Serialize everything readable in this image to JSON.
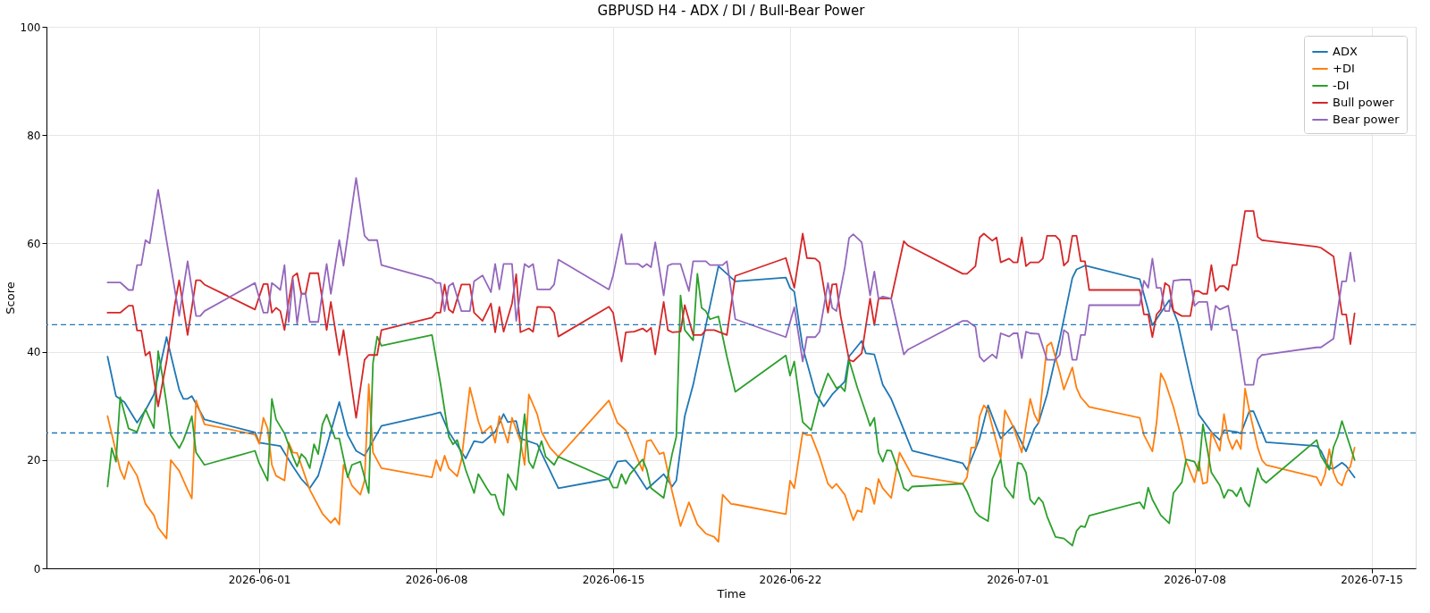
{
  "chart_data": {
    "type": "line",
    "title": "GBPUSD H4 - ADX / DI / Bull-Bear Power",
    "xlabel": "Time",
    "ylabel": "Score",
    "xlim": [
      "2026-05-23T14:00",
      "2026-07-16T18:00"
    ],
    "xticks": [
      "2026-06-01",
      "2026-06-08",
      "2026-06-15",
      "2026-06-22",
      "2026-07-01",
      "2026-07-08",
      "2026-07-15"
    ],
    "ylim": [
      0,
      100
    ],
    "yticks": [
      0,
      20,
      40,
      60,
      80,
      100
    ],
    "grid": true,
    "legend": "top right",
    "ref_lines": [
      {
        "axis": "y",
        "value": 45,
        "color": "#1f77b4",
        "line_style": "dashed"
      },
      {
        "axis": "y",
        "value": 25,
        "color": "#1f77b4",
        "line_style": "dashed"
      }
    ],
    "series": [
      {
        "name": "ADX",
        "color": "#1f77b4",
        "x": [
          "2026-05-26T00:00",
          "2026-05-26T08:00",
          "2026-05-26T16:00",
          "2026-05-27T04:00",
          "2026-05-27T12:00",
          "2026-05-27T20:00",
          "2026-05-28T08:00",
          "2026-05-28T20:00",
          "2026-05-29T00:00",
          "2026-05-29T04:00",
          "2026-05-29T08:00",
          "2026-05-29T20:00",
          "2026-05-31T20:00",
          "2026-06-01T00:00",
          "2026-06-01T20:00",
          "2026-06-02T08:00",
          "2026-06-02T16:00",
          "2026-06-03T00:00",
          "2026-06-03T08:00",
          "2026-06-04T04:00",
          "2026-06-04T12:00",
          "2026-06-04T20:00",
          "2026-06-05T04:00",
          "2026-06-05T12:00",
          "2026-06-05T20:00",
          "2026-06-07T20:00",
          "2026-06-08T04:00",
          "2026-06-08T12:00",
          "2026-06-09T04:00",
          "2026-06-09T12:00",
          "2026-06-09T20:00",
          "2026-06-10T08:00",
          "2026-06-10T16:00",
          "2026-06-10T20:00",
          "2026-06-11T04:00",
          "2026-06-11T08:00",
          "2026-06-12T00:00",
          "2026-06-12T20:00",
          "2026-06-14T20:00",
          "2026-06-15T04:00",
          "2026-06-15T12:00",
          "2026-06-15T20:00",
          "2026-06-16T08:00",
          "2026-06-17T00:00",
          "2026-06-17T08:00",
          "2026-06-17T12:00",
          "2026-06-17T20:00",
          "2026-06-18T04:00",
          "2026-06-19T04:00",
          "2026-06-19T20:00",
          "2026-06-21T20:00",
          "2026-06-22T00:00",
          "2026-06-22T04:00",
          "2026-06-22T12:00",
          "2026-06-23T00:00",
          "2026-06-23T08:00",
          "2026-06-23T16:00",
          "2026-06-24T04:00",
          "2026-06-24T08:00",
          "2026-06-24T20:00",
          "2026-06-25T00:00",
          "2026-06-25T08:00",
          "2026-06-25T16:00",
          "2026-06-26T00:00",
          "2026-06-26T08:00",
          "2026-06-26T20:00",
          "2026-06-28T20:00",
          "2026-06-29T00:00",
          "2026-06-29T08:00",
          "2026-06-29T12:00",
          "2026-06-29T20:00",
          "2026-06-30T08:00",
          "2026-06-30T20:00",
          "2026-07-01T08:00",
          "2026-07-01T16:00",
          "2026-07-01T20:00",
          "2026-07-02T04:00",
          "2026-07-02T16:00",
          "2026-07-03T04:00",
          "2026-07-03T08:00",
          "2026-07-03T16:00",
          "2026-07-05T20:00",
          "2026-07-06T08:00",
          "2026-07-07T00:00",
          "2026-07-07T08:00",
          "2026-07-07T20:00",
          "2026-07-08T04:00",
          "2026-07-08T16:00",
          "2026-07-09T00:00",
          "2026-07-09T04:00",
          "2026-07-09T16:00",
          "2026-07-09T20:00",
          "2026-07-10T04:00",
          "2026-07-10T08:00",
          "2026-07-10T20:00",
          "2026-07-12T20:00",
          "2026-07-13T00:00",
          "2026-07-13T08:00",
          "2026-07-13T12:00",
          "2026-07-13T20:00",
          "2026-07-14T00:00",
          "2026-07-14T08:00"
        ],
        "values": [
          39.1,
          31.8,
          30.7,
          26.9,
          29.2,
          32.1,
          42.7,
          33,
          31.3,
          31.3,
          31.8,
          27.5,
          25.1,
          23.2,
          22.6,
          18.8,
          16.5,
          14.8,
          17.1,
          30.7,
          24.6,
          21.7,
          20.8,
          23.5,
          26.3,
          28.4,
          28.8,
          25.2,
          20.3,
          23.5,
          23.2,
          25.2,
          28.5,
          27,
          27.2,
          24,
          22.9,
          14.8,
          16.5,
          19.7,
          19.9,
          18.2,
          14.6,
          17.4,
          15.1,
          16.2,
          28.1,
          33.9,
          55.8,
          53,
          53.7,
          51.8,
          51.1,
          40.8,
          32.4,
          29.9,
          32.1,
          34.5,
          39.1,
          42,
          39.7,
          39.5,
          33.9,
          31.3,
          27.5,
          21.7,
          19.4,
          18.2,
          22,
          24,
          30.1,
          24,
          26.3,
          21.6,
          25.8,
          26.9,
          32.1,
          42.3,
          53.6,
          55.2,
          55.9,
          53.4,
          44.9,
          49.5,
          45.5,
          35,
          28.4,
          25.2,
          23.7,
          25.5,
          25.2,
          24.9,
          29,
          29,
          23.3,
          22.6,
          21.7,
          18.5,
          18.4,
          19.5,
          18.9,
          16.8
        ]
      },
      {
        "name": "+DI",
        "color": "#ff7f0e",
        "x": [
          "2026-05-26T00:00",
          "2026-05-26T12:00",
          "2026-05-26T16:00",
          "2026-05-26T20:00",
          "2026-05-27T04:00",
          "2026-05-27T12:00",
          "2026-05-27T20:00",
          "2026-05-28T00:00",
          "2026-05-28T08:00",
          "2026-05-28T12:00",
          "2026-05-28T20:00",
          "2026-05-29T04:00",
          "2026-05-29T08:00",
          "2026-05-29T12:00",
          "2026-05-29T20:00",
          "2026-05-31T20:00",
          "2026-06-01T00:00",
          "2026-06-01T04:00",
          "2026-06-01T08:00",
          "2026-06-01T12:00",
          "2026-06-01T16:00",
          "2026-06-02T00:00",
          "2026-06-02T04:00",
          "2026-06-02T08:00",
          "2026-06-02T12:00",
          "2026-06-03T00:00",
          "2026-06-03T12:00",
          "2026-06-03T20:00",
          "2026-06-04T00:00",
          "2026-06-04T04:00",
          "2026-06-04T08:00",
          "2026-06-04T16:00",
          "2026-06-05T00:00",
          "2026-06-05T04:00",
          "2026-06-05T08:00",
          "2026-06-05T12:00",
          "2026-06-05T20:00",
          "2026-06-07T20:00",
          "2026-06-08T00:00",
          "2026-06-08T04:00",
          "2026-06-08T08:00",
          "2026-06-08T12:00",
          "2026-06-08T20:00",
          "2026-06-09T00:00",
          "2026-06-09T08:00",
          "2026-06-09T16:00",
          "2026-06-09T20:00",
          "2026-06-10T04:00",
          "2026-06-10T08:00",
          "2026-06-10T12:00",
          "2026-06-10T20:00",
          "2026-06-11T00:00",
          "2026-06-11T08:00",
          "2026-06-11T12:00",
          "2026-06-11T16:00",
          "2026-06-12T00:00",
          "2026-06-12T04:00",
          "2026-06-12T12:00",
          "2026-06-12T20:00",
          "2026-06-14T20:00",
          "2026-06-15T04:00",
          "2026-06-15T12:00",
          "2026-06-15T20:00",
          "2026-06-16T04:00",
          "2026-06-16T08:00",
          "2026-06-16T12:00",
          "2026-06-16T20:00",
          "2026-06-17T00:00",
          "2026-06-17T08:00",
          "2026-06-17T16:00",
          "2026-06-18T00:00",
          "2026-06-18T08:00",
          "2026-06-18T16:00",
          "2026-06-19T00:00",
          "2026-06-19T04:00",
          "2026-06-19T08:00",
          "2026-06-19T16:00",
          "2026-06-19T20:00",
          "2026-06-21T20:00",
          "2026-06-22T00:00",
          "2026-06-22T04:00",
          "2026-06-22T12:00",
          "2026-06-22T16:00",
          "2026-06-22T20:00",
          "2026-06-23T04:00",
          "2026-06-23T12:00",
          "2026-06-23T16:00",
          "2026-06-23T20:00",
          "2026-06-24T04:00",
          "2026-06-24T12:00",
          "2026-06-24T16:00",
          "2026-06-24T20:00",
          "2026-06-25T00:00",
          "2026-06-25T04:00",
          "2026-06-25T08:00",
          "2026-06-25T12:00",
          "2026-06-25T16:00",
          "2026-06-26T00:00",
          "2026-06-26T08:00",
          "2026-06-26T20:00",
          "2026-06-28T20:00",
          "2026-06-29T00:00",
          "2026-06-29T04:00",
          "2026-06-29T08:00",
          "2026-06-29T12:00",
          "2026-06-29T16:00",
          "2026-06-29T20:00",
          "2026-06-30T08:00",
          "2026-06-30T12:00",
          "2026-06-30T20:00",
          "2026-07-01T04:00",
          "2026-07-01T12:00",
          "2026-07-01T16:00",
          "2026-07-01T20:00",
          "2026-07-02T04:00",
          "2026-07-02T08:00",
          "2026-07-02T16:00",
          "2026-07-02T20:00",
          "2026-07-03T04:00",
          "2026-07-03T08:00",
          "2026-07-03T12:00",
          "2026-07-03T20:00",
          "2026-07-05T20:00",
          "2026-07-06T00:00",
          "2026-07-06T08:00",
          "2026-07-06T12:00",
          "2026-07-06T16:00",
          "2026-07-06T20:00",
          "2026-07-07T04:00",
          "2026-07-07T12:00",
          "2026-07-07T16:00",
          "2026-07-08T00:00",
          "2026-07-08T04:00",
          "2026-07-08T08:00",
          "2026-07-08T12:00",
          "2026-07-08T16:00",
          "2026-07-09T00:00",
          "2026-07-09T04:00",
          "2026-07-09T08:00",
          "2026-07-09T12:00",
          "2026-07-09T16:00",
          "2026-07-09T20:00",
          "2026-07-10T00:00",
          "2026-07-10T04:00",
          "2026-07-10T12:00",
          "2026-07-10T16:00",
          "2026-07-10T20:00",
          "2026-07-12T20:00",
          "2026-07-13T00:00",
          "2026-07-13T04:00",
          "2026-07-13T08:00",
          "2026-07-13T12:00",
          "2026-07-13T16:00",
          "2026-07-13T20:00",
          "2026-07-14T00:00",
          "2026-07-14T04:00",
          "2026-07-14T08:00"
        ],
        "values": [
          28.1,
          18.2,
          16.5,
          19.7,
          17.1,
          11.9,
          9.8,
          7.5,
          5.5,
          20,
          18,
          14.5,
          12.9,
          31,
          26.6,
          24.7,
          23,
          27.8,
          25.8,
          19.1,
          17.1,
          16.2,
          23.2,
          21.4,
          21.3,
          14.5,
          10.1,
          8.4,
          9.3,
          8.1,
          19.1,
          15.3,
          13.6,
          16.2,
          34,
          21.4,
          18.5,
          16.8,
          20,
          18,
          20.8,
          18.5,
          17,
          20,
          33.4,
          27.2,
          24.9,
          26.3,
          23.2,
          28.1,
          23.2,
          27.8,
          23.5,
          19.1,
          32.1,
          28.4,
          25.2,
          22.3,
          20.6,
          31,
          26.9,
          25.5,
          21.7,
          18,
          23.5,
          23.7,
          21.1,
          21.4,
          14.2,
          7.8,
          12.2,
          8.1,
          6.4,
          5.8,
          4.9,
          13.6,
          11.9,
          11.8,
          10,
          16.2,
          14.8,
          25.1,
          24.6,
          24.6,
          20.6,
          15.6,
          14.8,
          15.6,
          13.6,
          8.9,
          10.7,
          10.4,
          14.9,
          14.5,
          11.9,
          16.5,
          14.8,
          13,
          21.4,
          17.1,
          15.6,
          16.8,
          22.3,
          22.3,
          28.1,
          30.1,
          29.2,
          20.3,
          29.2,
          26.1,
          21.4,
          31.3,
          28.4,
          26.9,
          41.1,
          41.7,
          36.2,
          33,
          37.1,
          33.3,
          31.6,
          29.8,
          27.8,
          24.6,
          21.6,
          26.9,
          36,
          34.5,
          29.8,
          23.7,
          19.7,
          15.9,
          19.7,
          15.6,
          15.9,
          25.2,
          21.7,
          28.5,
          24,
          22,
          23.7,
          22,
          33.2,
          29.2,
          22.3,
          20,
          19.1,
          16.8,
          15.3,
          17.4,
          22,
          17.7,
          15.9,
          15.3,
          17.7,
          18.8,
          22.3
        ]
      },
      {
        "name": "-DI",
        "color": "#2ca02c",
        "x": [
          "2026-05-26T00:00",
          "2026-05-26T04:00",
          "2026-05-26T08:00",
          "2026-05-26T12:00",
          "2026-05-26T20:00",
          "2026-05-27T04:00",
          "2026-05-27T12:00",
          "2026-05-27T20:00",
          "2026-05-28T00:00",
          "2026-05-28T04:00",
          "2026-05-28T08:00",
          "2026-05-28T12:00",
          "2026-05-28T20:00",
          "2026-05-29T00:00",
          "2026-05-29T04:00",
          "2026-05-29T08:00",
          "2026-05-29T12:00",
          "2026-05-29T20:00",
          "2026-05-31T20:00",
          "2026-06-01T00:00",
          "2026-06-01T08:00",
          "2026-06-01T12:00",
          "2026-06-01T16:00",
          "2026-06-02T00:00",
          "2026-06-02T08:00",
          "2026-06-02T12:00",
          "2026-06-02T16:00",
          "2026-06-02T20:00",
          "2026-06-03T00:00",
          "2026-06-03T04:00",
          "2026-06-03T08:00",
          "2026-06-03T12:00",
          "2026-06-03T16:00",
          "2026-06-04T00:00",
          "2026-06-04T04:00",
          "2026-06-04T12:00",
          "2026-06-04T16:00",
          "2026-06-05T00:00",
          "2026-06-05T08:00",
          "2026-06-05T12:00",
          "2026-06-05T16:00",
          "2026-06-05T20:00",
          "2026-06-07T20:00",
          "2026-06-08T04:00",
          "2026-06-08T12:00",
          "2026-06-08T16:00",
          "2026-06-08T20:00",
          "2026-06-09T04:00",
          "2026-06-09T12:00",
          "2026-06-09T16:00",
          "2026-06-10T00:00",
          "2026-06-10T04:00",
          "2026-06-10T08:00",
          "2026-06-10T12:00",
          "2026-06-10T16:00",
          "2026-06-10T20:00",
          "2026-06-11T04:00",
          "2026-06-11T12:00",
          "2026-06-11T16:00",
          "2026-06-11T20:00",
          "2026-06-12T00:00",
          "2026-06-12T04:00",
          "2026-06-12T08:00",
          "2026-06-12T16:00",
          "2026-06-12T20:00",
          "2026-06-14T20:00",
          "2026-06-15T00:00",
          "2026-06-15T04:00",
          "2026-06-15T08:00",
          "2026-06-15T12:00",
          "2026-06-15T16:00",
          "2026-06-16T04:00",
          "2026-06-16T08:00",
          "2026-06-16T12:00",
          "2026-06-17T00:00",
          "2026-06-17T08:00",
          "2026-06-17T12:00",
          "2026-06-17T16:00",
          "2026-06-17T20:00",
          "2026-06-18T04:00",
          "2026-06-18T08:00",
          "2026-06-18T12:00",
          "2026-06-18T16:00",
          "2026-06-18T20:00",
          "2026-06-19T04:00",
          "2026-06-19T12:00",
          "2026-06-19T20:00",
          "2026-06-21T20:00",
          "2026-06-22T00:00",
          "2026-06-22T04:00",
          "2026-06-22T12:00",
          "2026-06-22T20:00",
          "2026-06-23T04:00",
          "2026-06-23T12:00",
          "2026-06-23T20:00",
          "2026-06-24T00:00",
          "2026-06-24T04:00",
          "2026-06-24T08:00",
          "2026-06-24T16:00",
          "2026-06-25T00:00",
          "2026-06-25T04:00",
          "2026-06-25T08:00",
          "2026-06-25T12:00",
          "2026-06-25T16:00",
          "2026-06-25T20:00",
          "2026-06-26T00:00",
          "2026-06-26T08:00",
          "2026-06-26T12:00",
          "2026-06-26T16:00",
          "2026-06-26T20:00",
          "2026-06-28T20:00",
          "2026-06-29T00:00",
          "2026-06-29T08:00",
          "2026-06-29T12:00",
          "2026-06-29T20:00",
          "2026-06-30T00:00",
          "2026-06-30T08:00",
          "2026-06-30T12:00",
          "2026-06-30T20:00",
          "2026-07-01T00:00",
          "2026-07-01T04:00",
          "2026-07-01T08:00",
          "2026-07-01T12:00",
          "2026-07-01T16:00",
          "2026-07-01T20:00",
          "2026-07-02T00:00",
          "2026-07-02T04:00",
          "2026-07-02T12:00",
          "2026-07-02T20:00",
          "2026-07-03T04:00",
          "2026-07-03T08:00",
          "2026-07-03T12:00",
          "2026-07-03T16:00",
          "2026-07-03T20:00",
          "2026-07-05T20:00",
          "2026-07-06T00:00",
          "2026-07-06T04:00",
          "2026-07-06T08:00",
          "2026-07-06T16:00",
          "2026-07-07T00:00",
          "2026-07-07T04:00",
          "2026-07-07T12:00",
          "2026-07-07T16:00",
          "2026-07-07T20:00",
          "2026-07-08T00:00",
          "2026-07-08T04:00",
          "2026-07-08T08:00",
          "2026-07-08T16:00",
          "2026-07-09T00:00",
          "2026-07-09T04:00",
          "2026-07-09T08:00",
          "2026-07-09T12:00",
          "2026-07-09T16:00",
          "2026-07-09T20:00",
          "2026-07-10T00:00",
          "2026-07-10T04:00",
          "2026-07-10T12:00",
          "2026-07-10T16:00",
          "2026-07-10T20:00",
          "2026-07-12T20:00",
          "2026-07-13T00:00",
          "2026-07-13T08:00",
          "2026-07-13T12:00",
          "2026-07-13T16:00",
          "2026-07-13T20:00",
          "2026-07-14T08:00"
        ],
        "values": [
          15.1,
          22.2,
          19.7,
          31.6,
          25.8,
          25.2,
          29.4,
          25.9,
          40.1,
          35.6,
          30.4,
          24.6,
          22.2,
          23.7,
          25.8,
          28.1,
          21.4,
          19.1,
          21.7,
          19.4,
          16.2,
          31.3,
          27.5,
          24.9,
          20.6,
          18.8,
          21.1,
          20.3,
          18.5,
          22.9,
          21.1,
          26.6,
          28.4,
          24,
          24,
          16.8,
          19.1,
          19.7,
          13.9,
          37.9,
          42.8,
          41.1,
          43.1,
          34.2,
          24.3,
          22.9,
          23.7,
          18.2,
          13.9,
          17.4,
          14.8,
          13.6,
          13.6,
          11,
          9.8,
          17.4,
          14.5,
          28.5,
          19.7,
          18.5,
          21.1,
          23.5,
          20.6,
          19.1,
          20.6,
          16.5,
          14.9,
          14.9,
          17.4,
          15.6,
          17.4,
          20.1,
          18.2,
          14.8,
          13,
          21.1,
          24.3,
          50.4,
          44,
          42.1,
          54.4,
          48.1,
          47.5,
          46,
          46.5,
          39.1,
          32.6,
          39.3,
          35.6,
          38.2,
          27,
          25.5,
          31.6,
          36,
          33.3,
          33.6,
          32.7,
          38.5,
          33.3,
          28.7,
          26.3,
          27.8,
          21.4,
          19.7,
          21.8,
          21.7,
          17.4,
          14.8,
          14.3,
          15.1,
          15.6,
          14.2,
          10.4,
          9.6,
          8.7,
          16.5,
          20.1,
          15.1,
          13,
          19.5,
          19.3,
          17.7,
          12.7,
          11.8,
          13.1,
          12.2,
          9.6,
          5.8,
          5.5,
          4.2,
          6.9,
          7.8,
          7.6,
          9.7,
          12.2,
          11,
          14.9,
          12.7,
          9.8,
          8.3,
          13.9,
          15.9,
          20.1,
          19.9,
          19.7,
          18,
          26.6,
          17.7,
          15.3,
          13,
          14.5,
          14.3,
          13.3,
          14.9,
          12.4,
          11.4,
          18.5,
          16.5,
          15.8,
          23.7,
          20.8,
          18.2,
          22.4,
          24.3,
          27.2,
          20
        ]
      },
      {
        "name": "Bull power",
        "color": "#d62728",
        "x": [
          "2026-05-26T00:00",
          "2026-05-26T12:00",
          "2026-05-26T20:00",
          "2026-05-27T00:00",
          "2026-05-27T04:00",
          "2026-05-27T08:00",
          "2026-05-27T12:00",
          "2026-05-27T16:00",
          "2026-05-28T00:00",
          "2026-05-28T08:00",
          "2026-05-28T16:00",
          "2026-05-28T20:00",
          "2026-05-29T04:00",
          "2026-05-29T12:00",
          "2026-05-29T16:00",
          "2026-05-29T20:00",
          "2026-05-31T20:00",
          "2026-06-01T04:00",
          "2026-06-01T08:00",
          "2026-06-01T12:00",
          "2026-06-01T16:00",
          "2026-06-01T20:00",
          "2026-06-02T00:00",
          "2026-06-02T04:00",
          "2026-06-02T08:00",
          "2026-06-02T12:00",
          "2026-06-02T16:00",
          "2026-06-02T20:00",
          "2026-06-03T00:00",
          "2026-06-03T08:00",
          "2026-06-03T12:00",
          "2026-06-03T16:00",
          "2026-06-03T20:00",
          "2026-06-04T04:00",
          "2026-06-04T08:00",
          "2026-06-04T20:00",
          "2026-06-05T04:00",
          "2026-06-05T08:00",
          "2026-06-05T16:00",
          "2026-06-05T20:00",
          "2026-06-07T20:00",
          "2026-06-08T00:00",
          "2026-06-08T04:00",
          "2026-06-08T08:00",
          "2026-06-08T12:00",
          "2026-06-08T16:00",
          "2026-06-09T00:00",
          "2026-06-09T08:00",
          "2026-06-09T12:00",
          "2026-06-09T20:00",
          "2026-06-10T04:00",
          "2026-06-10T08:00",
          "2026-06-10T12:00",
          "2026-06-10T16:00",
          "2026-06-11T00:00",
          "2026-06-11T04:00",
          "2026-06-11T08:00",
          "2026-06-11T16:00",
          "2026-06-11T20:00",
          "2026-06-12T00:00",
          "2026-06-12T12:00",
          "2026-06-12T16:00",
          "2026-06-12T20:00",
          "2026-06-14T20:00",
          "2026-06-15T00:00",
          "2026-06-15T08:00",
          "2026-06-15T12:00",
          "2026-06-15T20:00",
          "2026-06-16T04:00",
          "2026-06-16T08:00",
          "2026-06-16T12:00",
          "2026-06-16T16:00",
          "2026-06-17T00:00",
          "2026-06-17T04:00",
          "2026-06-17T08:00",
          "2026-06-17T16:00",
          "2026-06-17T20:00",
          "2026-06-18T04:00",
          "2026-06-18T12:00",
          "2026-06-18T16:00",
          "2026-06-19T00:00",
          "2026-06-19T12:00",
          "2026-06-19T20:00",
          "2026-06-21T20:00",
          "2026-06-22T04:00",
          "2026-06-22T12:00",
          "2026-06-22T16:00",
          "2026-06-23T00:00",
          "2026-06-23T04:00",
          "2026-06-23T12:00",
          "2026-06-23T16:00",
          "2026-06-23T20:00",
          "2026-06-24T00:00",
          "2026-06-24T08:00",
          "2026-06-24T12:00",
          "2026-06-24T20:00",
          "2026-06-25T04:00",
          "2026-06-25T08:00",
          "2026-06-25T12:00",
          "2026-06-25T16:00",
          "2026-06-26T00:00",
          "2026-06-26T12:00",
          "2026-06-26T16:00",
          "2026-06-28T20:00",
          "2026-06-29T00:00",
          "2026-06-29T08:00",
          "2026-06-29T12:00",
          "2026-06-29T16:00",
          "2026-06-30T00:00",
          "2026-06-30T04:00",
          "2026-06-30T08:00",
          "2026-06-30T16:00",
          "2026-06-30T20:00",
          "2026-07-01T00:00",
          "2026-07-01T04:00",
          "2026-07-01T08:00",
          "2026-07-01T12:00",
          "2026-07-01T20:00",
          "2026-07-02T00:00",
          "2026-07-02T04:00",
          "2026-07-02T12:00",
          "2026-07-02T16:00",
          "2026-07-02T20:00",
          "2026-07-03T00:00",
          "2026-07-03T04:00",
          "2026-07-03T08:00",
          "2026-07-03T12:00",
          "2026-07-03T16:00",
          "2026-07-03T20:00",
          "2026-07-05T20:00",
          "2026-07-06T00:00",
          "2026-07-06T04:00",
          "2026-07-06T08:00",
          "2026-07-06T12:00",
          "2026-07-06T16:00",
          "2026-07-06T20:00",
          "2026-07-07T00:00",
          "2026-07-07T04:00",
          "2026-07-07T12:00",
          "2026-07-07T20:00",
          "2026-07-08T00:00",
          "2026-07-08T04:00",
          "2026-07-08T08:00",
          "2026-07-08T12:00",
          "2026-07-08T16:00",
          "2026-07-08T20:00",
          "2026-07-09T00:00",
          "2026-07-09T04:00",
          "2026-07-09T08:00",
          "2026-07-09T12:00",
          "2026-07-09T16:00",
          "2026-07-10T00:00",
          "2026-07-10T08:00",
          "2026-07-10T12:00",
          "2026-07-10T16:00",
          "2026-07-10T20:00",
          "2026-07-12T20:00",
          "2026-07-13T00:00",
          "2026-07-13T12:00",
          "2026-07-13T20:00",
          "2026-07-14T00:00",
          "2026-07-14T04:00",
          "2026-07-14T08:00"
        ],
        "values": [
          47.2,
          47.2,
          48.5,
          48.5,
          43.9,
          43.9,
          39.3,
          40,
          29.9,
          38.2,
          48.9,
          53.2,
          43.1,
          53.2,
          53.2,
          52.4,
          47.8,
          52.5,
          52.5,
          47.2,
          48.1,
          47.5,
          44,
          49.4,
          53.9,
          54.5,
          50.7,
          50.7,
          54.5,
          54.5,
          49.5,
          44,
          49.2,
          39.4,
          44,
          27.8,
          38.5,
          39.4,
          39.4,
          44,
          46.3,
          47.2,
          47.2,
          52.4,
          47.8,
          47.2,
          52.4,
          52.4,
          47.2,
          45.7,
          48.9,
          43.6,
          48.3,
          43.7,
          48.9,
          54.3,
          43.6,
          44.3,
          43.7,
          48.3,
          48.2,
          47.2,
          42.8,
          48.3,
          47.2,
          38.2,
          43.6,
          43.7,
          44.3,
          43.7,
          44.4,
          39.5,
          49.2,
          44,
          43.6,
          43.7,
          48.6,
          43.1,
          43.1,
          44,
          44,
          43.1,
          54,
          57.3,
          51.8,
          61.8,
          57.3,
          57.2,
          56.5,
          47.2,
          52.4,
          52.5,
          46.6,
          38.5,
          38.2,
          39.7,
          49.8,
          44.9,
          49.8,
          49.8,
          49.8,
          60.4,
          59.6,
          54.4,
          54.4,
          55.8,
          61.1,
          61.8,
          60.5,
          61.1,
          56.5,
          57.2,
          56.5,
          56.5,
          61.1,
          55.8,
          56.5,
          56.5,
          57.2,
          61.4,
          61.4,
          60.6,
          55.9,
          56.7,
          61.4,
          61.4,
          56.7,
          56.7,
          51.4,
          51.4,
          46.9,
          46.9,
          42.7,
          46.9,
          47.8,
          52.7,
          52.1,
          47.5,
          46.6,
          46.6,
          51.2,
          51.2,
          50.7,
          50.7,
          56,
          51.2,
          52.1,
          52.1,
          51.4,
          56,
          56,
          66,
          66,
          61.2,
          60.6,
          60.5,
          59.4,
          59.2,
          57.6,
          46.9,
          46.9,
          41.4,
          47.1
        ]
      },
      {
        "name": "Bear power",
        "color": "#9467bd",
        "x": [
          "2026-05-26T00:00",
          "2026-05-26T12:00",
          "2026-05-26T20:00",
          "2026-05-27T00:00",
          "2026-05-27T04:00",
          "2026-05-27T08:00",
          "2026-05-27T12:00",
          "2026-05-27T16:00",
          "2026-05-28T00:00",
          "2026-05-28T20:00",
          "2026-05-29T04:00",
          "2026-05-29T12:00",
          "2026-05-29T16:00",
          "2026-05-29T20:00",
          "2026-05-31T20:00",
          "2026-06-01T04:00",
          "2026-06-01T08:00",
          "2026-06-01T12:00",
          "2026-06-01T16:00",
          "2026-06-01T20:00",
          "2026-06-02T00:00",
          "2026-06-02T04:00",
          "2026-06-02T08:00",
          "2026-06-02T12:00",
          "2026-06-02T16:00",
          "2026-06-02T20:00",
          "2026-06-03T00:00",
          "2026-06-03T08:00",
          "2026-06-03T12:00",
          "2026-06-03T16:00",
          "2026-06-03T20:00",
          "2026-06-04T04:00",
          "2026-06-04T08:00",
          "2026-06-04T20:00",
          "2026-06-05T04:00",
          "2026-06-05T08:00",
          "2026-06-05T16:00",
          "2026-06-05T20:00",
          "2026-06-07T20:00",
          "2026-06-08T00:00",
          "2026-06-08T04:00",
          "2026-06-08T08:00",
          "2026-06-08T12:00",
          "2026-06-08T16:00",
          "2026-06-09T00:00",
          "2026-06-09T08:00",
          "2026-06-09T12:00",
          "2026-06-09T20:00",
          "2026-06-10T04:00",
          "2026-06-10T08:00",
          "2026-06-10T12:00",
          "2026-06-10T16:00",
          "2026-06-11T00:00",
          "2026-06-11T04:00",
          "2026-06-11T12:00",
          "2026-06-11T16:00",
          "2026-06-11T20:00",
          "2026-06-12T00:00",
          "2026-06-12T12:00",
          "2026-06-12T16:00",
          "2026-06-12T20:00",
          "2026-06-14T20:00",
          "2026-06-15T00:00",
          "2026-06-15T08:00",
          "2026-06-15T12:00",
          "2026-06-16T00:00",
          "2026-06-16T04:00",
          "2026-06-16T08:00",
          "2026-06-16T12:00",
          "2026-06-16T16:00",
          "2026-06-17T00:00",
          "2026-06-17T04:00",
          "2026-06-17T08:00",
          "2026-06-17T16:00",
          "2026-06-18T00:00",
          "2026-06-18T04:00",
          "2026-06-18T16:00",
          "2026-06-18T20:00",
          "2026-06-19T08:00",
          "2026-06-19T12:00",
          "2026-06-19T20:00",
          "2026-06-21T20:00",
          "2026-06-22T04:00",
          "2026-06-22T12:00",
          "2026-06-22T16:00",
          "2026-06-23T00:00",
          "2026-06-23T04:00",
          "2026-06-23T12:00",
          "2026-06-23T16:00",
          "2026-06-23T20:00",
          "2026-06-24T04:00",
          "2026-06-24T08:00",
          "2026-06-24T12:00",
          "2026-06-24T20:00",
          "2026-06-25T04:00",
          "2026-06-25T08:00",
          "2026-06-25T12:00",
          "2026-06-25T16:00",
          "2026-06-26T00:00",
          "2026-06-26T12:00",
          "2026-06-26T16:00",
          "2026-06-28T20:00",
          "2026-06-29T00:00",
          "2026-06-29T08:00",
          "2026-06-29T12:00",
          "2026-06-29T16:00",
          "2026-06-30T00:00",
          "2026-06-30T04:00",
          "2026-06-30T08:00",
          "2026-06-30T16:00",
          "2026-06-30T20:00",
          "2026-07-01T00:00",
          "2026-07-01T04:00",
          "2026-07-01T08:00",
          "2026-07-01T12:00",
          "2026-07-01T20:00",
          "2026-07-02T04:00",
          "2026-07-02T12:00",
          "2026-07-02T16:00",
          "2026-07-02T20:00",
          "2026-07-03T00:00",
          "2026-07-03T04:00",
          "2026-07-03T08:00",
          "2026-07-03T12:00",
          "2026-07-03T16:00",
          "2026-07-03T20:00",
          "2026-07-05T20:00",
          "2026-07-06T00:00",
          "2026-07-06T04:00",
          "2026-07-06T08:00",
          "2026-07-06T12:00",
          "2026-07-06T16:00",
          "2026-07-06T20:00",
          "2026-07-07T00:00",
          "2026-07-07T04:00",
          "2026-07-07T12:00",
          "2026-07-07T20:00",
          "2026-07-08T00:00",
          "2026-07-08T04:00",
          "2026-07-08T12:00",
          "2026-07-08T16:00",
          "2026-07-08T20:00",
          "2026-07-09T00:00",
          "2026-07-09T08:00",
          "2026-07-09T12:00",
          "2026-07-09T16:00",
          "2026-07-10T00:00",
          "2026-07-10T08:00",
          "2026-07-10T12:00",
          "2026-07-10T16:00",
          "2026-07-10T20:00",
          "2026-07-12T20:00",
          "2026-07-13T00:00",
          "2026-07-13T12:00",
          "2026-07-13T20:00",
          "2026-07-14T00:00",
          "2026-07-14T04:00",
          "2026-07-14T08:00"
        ],
        "values": [
          52.8,
          52.8,
          51.4,
          51.4,
          56,
          56,
          60.6,
          60,
          69.9,
          46.6,
          56.7,
          46.6,
          46.6,
          47.5,
          52.7,
          47.2,
          47.2,
          52.7,
          52.1,
          51.4,
          56,
          45.5,
          53.3,
          45.2,
          50.7,
          50.7,
          45.5,
          45.5,
          51,
          56.2,
          50.7,
          60.6,
          55.9,
          72.1,
          61.4,
          60.6,
          60.6,
          56,
          53.4,
          52.7,
          52.7,
          47.5,
          52.1,
          52.7,
          47.5,
          47.5,
          53,
          54.1,
          51,
          56.2,
          51.5,
          56.2,
          56.2,
          45.7,
          56.2,
          55.6,
          56.2,
          51.5,
          51.5,
          52.4,
          57,
          51.5,
          54.1,
          61.7,
          56.2,
          56.2,
          55.6,
          56.2,
          55.6,
          60.2,
          50.4,
          55.9,
          56.2,
          56.2,
          51.2,
          56.7,
          56.7,
          56,
          56,
          56.7,
          46,
          42.7,
          48.2,
          38.2,
          42.7,
          42.7,
          43.7,
          52.7,
          48.1,
          47.5,
          55.6,
          61,
          61.7,
          60.2,
          50.4,
          54.8,
          49.8,
          50.2,
          49.8,
          39.5,
          40.4,
          45.7,
          45.7,
          44.6,
          39.1,
          38.2,
          39.5,
          38.8,
          43.4,
          42.8,
          43.4,
          43.4,
          38.8,
          43.7,
          43.4,
          43.3,
          38.5,
          38.5,
          39.4,
          44,
          43.4,
          38.5,
          38.5,
          43.1,
          43.1,
          48.6,
          48.6,
          53.1,
          51.8,
          57.2,
          51.8,
          51.8,
          47.5,
          47.5,
          53.1,
          53.3,
          53.3,
          48.5,
          49.2,
          49.2,
          44,
          48.5,
          47.8,
          48.5,
          44,
          44,
          33.9,
          33.9,
          38.6,
          39.4,
          39.5,
          40.8,
          40.8,
          42.4,
          53,
          53,
          58.3,
          53
        ]
      }
    ]
  }
}
